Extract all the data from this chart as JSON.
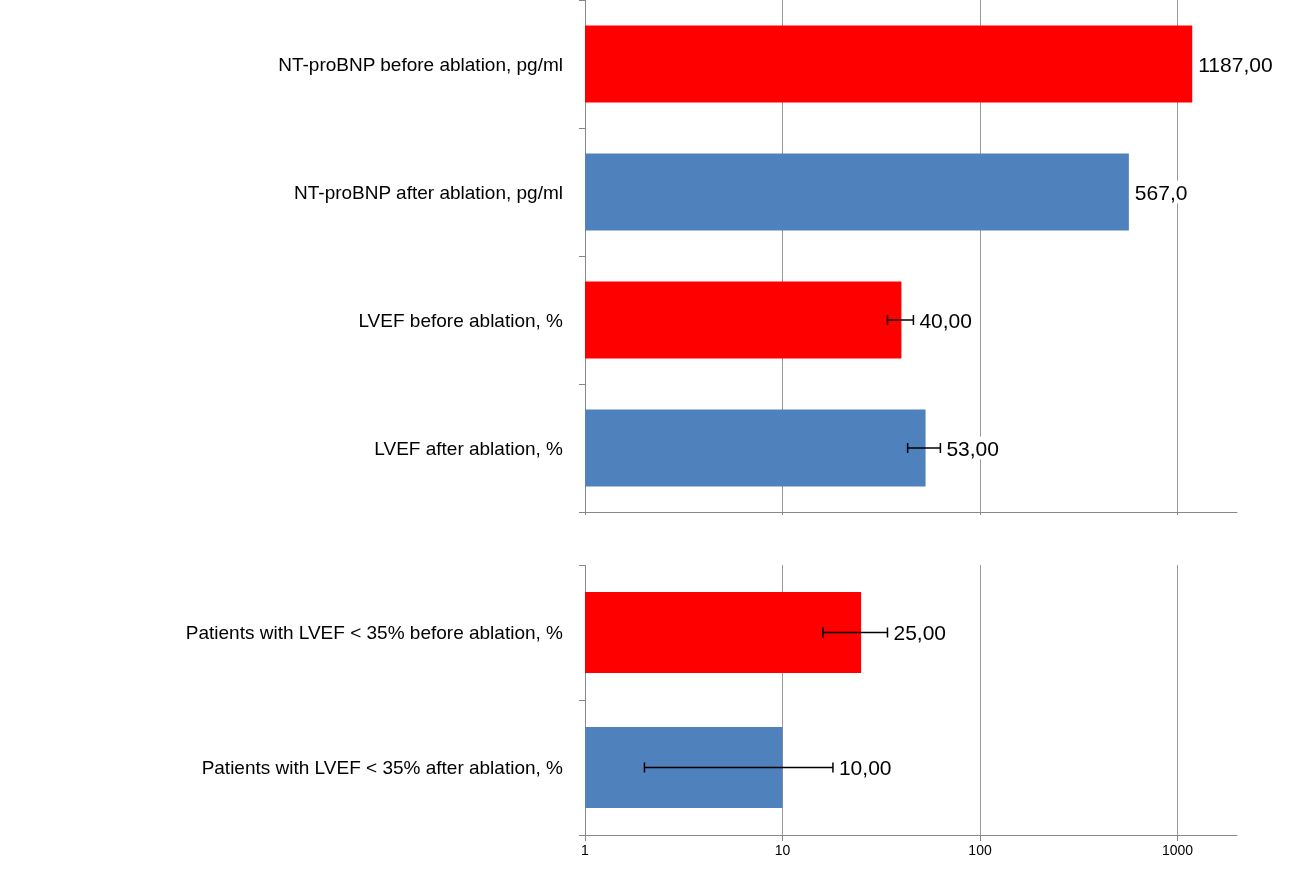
{
  "chart_data": [
    {
      "type": "bar",
      "orientation": "horizontal",
      "log": "x",
      "grid": "x",
      "tick_labels": "y",
      "categories": [
        "NT-proBNP before ablation, pg/ml",
        "NT-proBNP after ablation, pg/ml",
        "LVEF before ablation, %",
        "LVEF after ablation, %"
      ],
      "values": [
        1187,
        567,
        40,
        53
      ],
      "colors": [
        "#ff0000",
        "#4f81bd",
        "#ff0000",
        "#4f81bd"
      ],
      "errors": [
        null,
        null,
        6,
        10
      ],
      "value_labels": [
        "1187,00",
        "567,0",
        "40,00",
        "53,00"
      ],
      "xlim": [
        1,
        2000
      ],
      "xticks": [
        1,
        10,
        100,
        1000
      ]
    },
    {
      "type": "bar",
      "orientation": "horizontal",
      "log": "x",
      "grid": "x",
      "categories": [
        "Patients with LVEF < 35% before ablation, %",
        "Patients with LVEF < 35% after ablation, %"
      ],
      "values": [
        25,
        10
      ],
      "colors": [
        "#ff0000",
        "#4f81bd"
      ],
      "errors": [
        9,
        8
      ],
      "value_labels": [
        "25,00",
        "10,00"
      ],
      "xlim": [
        1,
        2000
      ],
      "xticks": [
        1,
        10,
        100,
        1000
      ]
    }
  ]
}
